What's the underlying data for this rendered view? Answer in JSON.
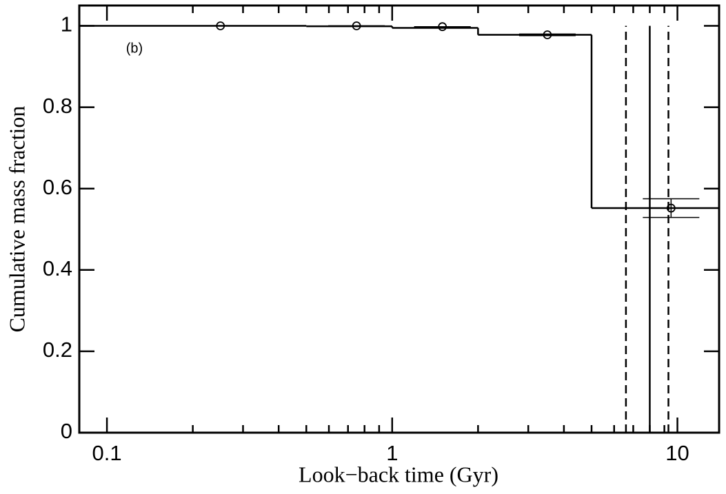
{
  "chart_data": {
    "type": "step",
    "x_label": "Look−back time (Gyr)",
    "y_label": "Cumulative mass fraction",
    "annotation": "(b)",
    "xscale": "log",
    "xlim": [
      0.08,
      14
    ],
    "ylim": [
      0,
      1.05
    ],
    "xticks": [
      0.1,
      1,
      10
    ],
    "minor_xticks": [
      0.2,
      0.3,
      0.4,
      0.5,
      0.6,
      0.7,
      0.8,
      0.9,
      2,
      3,
      4,
      5,
      6,
      7,
      8,
      9
    ],
    "yticks": [
      0,
      0.2,
      0.4,
      0.6,
      0.8,
      1
    ],
    "color": "#000000",
    "step": {
      "edges": [
        0.08,
        0.5,
        1,
        2,
        5,
        14
      ],
      "values": [
        1.0,
        0.999,
        0.995,
        0.978,
        0.552
      ]
    },
    "points": {
      "x": [
        0.25,
        0.75,
        1.5,
        3.5,
        9.5
      ],
      "values": [
        1.0,
        1.0,
        0.998,
        0.978,
        0.552
      ],
      "errors": [
        0,
        0,
        0,
        0.002,
        0.023
      ]
    },
    "vlines": [
      {
        "x": 6.6,
        "style": "dashed"
      },
      {
        "x": 8.0,
        "style": "solid"
      },
      {
        "x": 9.3,
        "style": "dashed"
      }
    ]
  }
}
